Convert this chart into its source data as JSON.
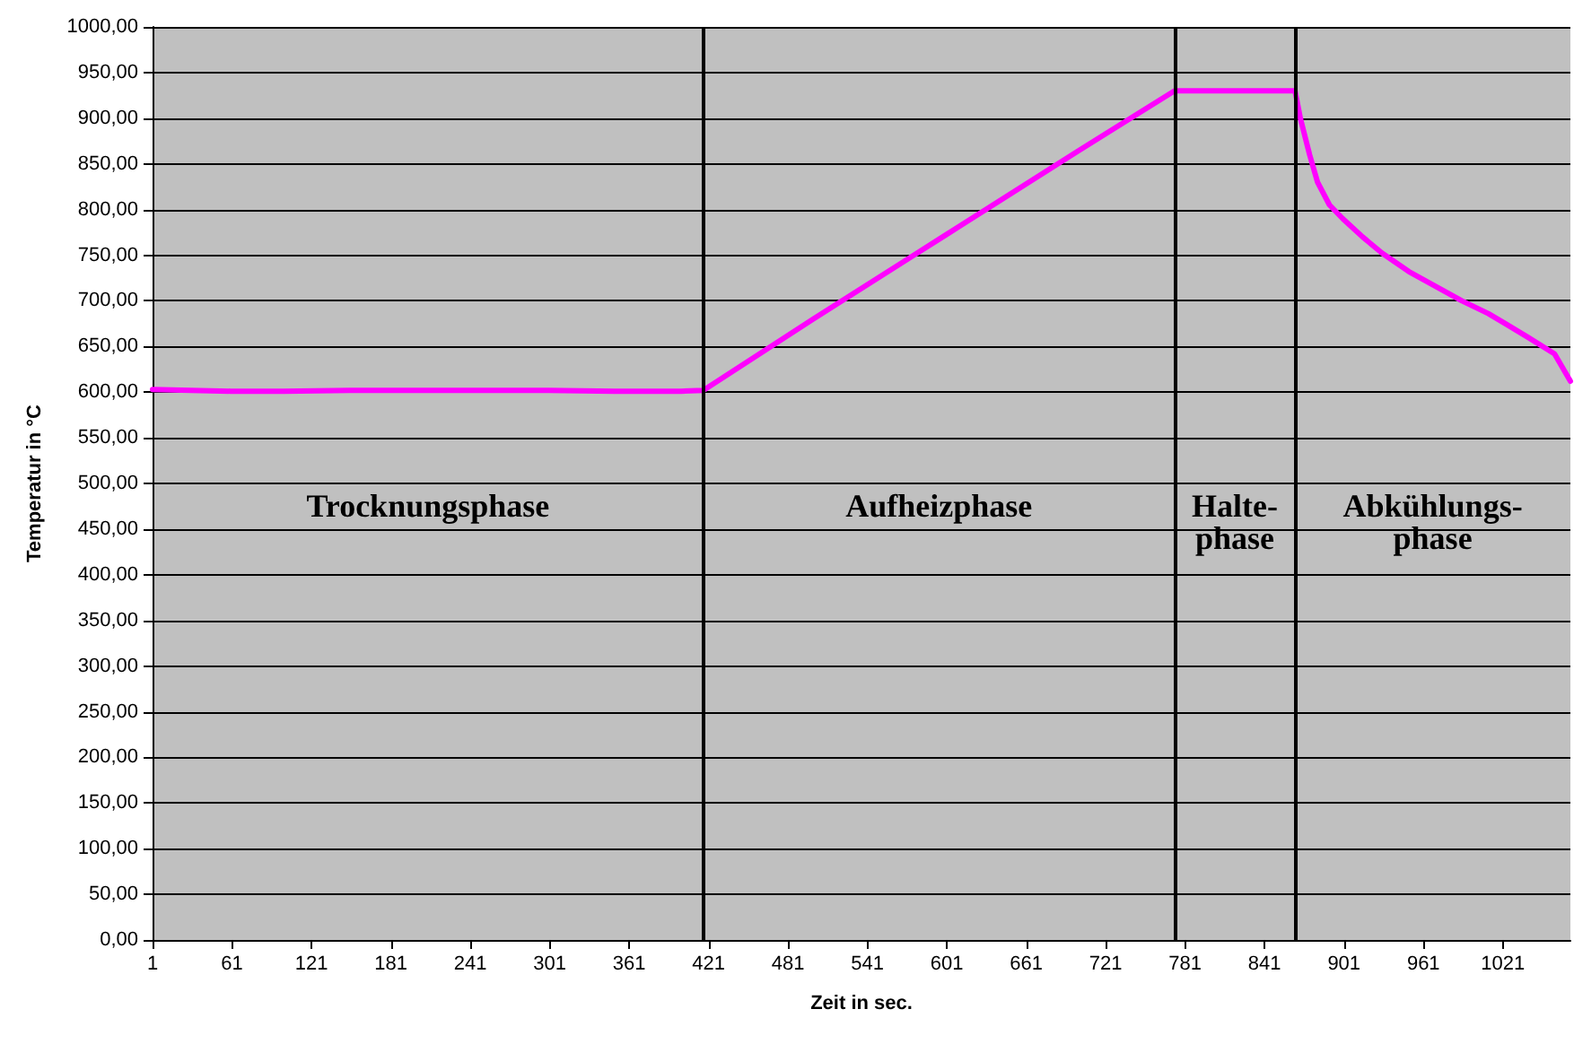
{
  "chart_data": {
    "type": "line",
    "xlabel": "Zeit in sec.",
    "ylabel": "Temperatur in °C",
    "x": [
      1,
      30,
      60,
      100,
      150,
      200,
      250,
      300,
      350,
      400,
      417,
      500,
      600,
      700,
      773,
      800,
      840,
      864,
      868,
      875,
      881,
      890,
      900,
      915,
      930,
      950,
      970,
      990,
      1010,
      1024,
      1040,
      1060,
      1072
    ],
    "series": [
      {
        "color": "#ff00ff",
        "values": [
          603,
          602,
          601,
          601,
          602,
          602,
          602,
          602,
          601,
          601,
          602,
          680,
          772,
          864,
          930,
          930,
          930,
          930,
          900,
          860,
          830,
          805,
          790,
          770,
          752,
          732,
          716,
          700,
          686,
          674,
          660,
          642,
          612
        ]
      }
    ],
    "xlim": [
      1,
      1072
    ],
    "xticks": [
      1,
      61,
      121,
      181,
      241,
      301,
      361,
      421,
      481,
      541,
      601,
      661,
      721,
      781,
      841,
      901,
      961,
      1021
    ],
    "ylim": [
      0,
      1000
    ],
    "yticks": [
      {
        "value": 0,
        "label": "0,00"
      },
      {
        "value": 50,
        "label": "50,00"
      },
      {
        "value": 100,
        "label": "100,00"
      },
      {
        "value": 150,
        "label": "150,00"
      },
      {
        "value": 200,
        "label": "200,00"
      },
      {
        "value": 250,
        "label": "250,00"
      },
      {
        "value": 300,
        "label": "300,00"
      },
      {
        "value": 350,
        "label": "350,00"
      },
      {
        "value": 400,
        "label": "400,00"
      },
      {
        "value": 450,
        "label": "450,00"
      },
      {
        "value": 500,
        "label": "500,00"
      },
      {
        "value": 550,
        "label": "550,00"
      },
      {
        "value": 600,
        "label": "600,00"
      },
      {
        "value": 650,
        "label": "650,00"
      },
      {
        "value": 700,
        "label": "700,00"
      },
      {
        "value": 750,
        "label": "750,00"
      },
      {
        "value": 800,
        "label": "800,00"
      },
      {
        "value": 850,
        "label": "850,00"
      },
      {
        "value": 900,
        "label": "900,00"
      },
      {
        "value": 950,
        "label": "950,00"
      },
      {
        "value": 1000,
        "label": "1000,00"
      }
    ],
    "grid": "y",
    "marker": "none",
    "line_style": "solid",
    "ref_lines": [
      {
        "axis": "x",
        "value": 417,
        "color": "#000000"
      },
      {
        "axis": "x",
        "value": 773,
        "color": "#000000"
      },
      {
        "axis": "x",
        "value": 864,
        "color": "#000000"
      }
    ],
    "annotations": [
      "Trocknungsphase",
      "Aufheizphase",
      "Halte-\nphase",
      "Abkühlungs-\nphase"
    ]
  }
}
